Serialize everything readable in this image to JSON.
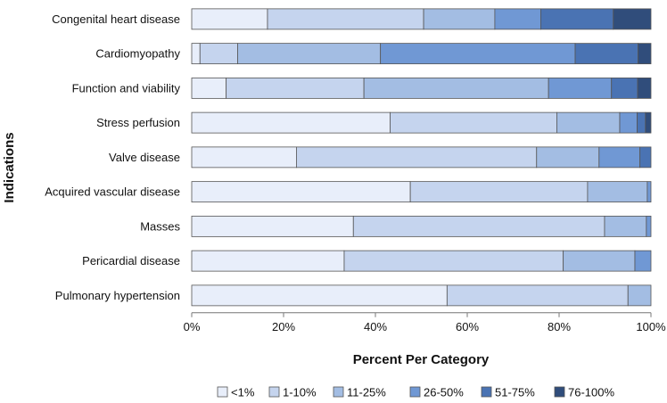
{
  "chart_data": {
    "type": "bar",
    "orientation": "horizontal",
    "stacked": true,
    "xlabel": "Percent Per Category",
    "ylabel": "Indications",
    "xlim": [
      0,
      100
    ],
    "xticks": [
      "0%",
      "20%",
      "40%",
      "60%",
      "80%",
      "100%"
    ],
    "categories": [
      "Congenital heart disease",
      "Cardiomyopathy",
      "Function and viability",
      "Stress perfusion",
      "Valve disease",
      "Acquired vascular disease",
      "Masses",
      "Pericardial disease",
      "Pulmonary hypertension"
    ],
    "series": [
      {
        "name": "<1%",
        "color": "#e8eefa",
        "values": [
          16.5,
          1.8,
          7.5,
          43.2,
          22.8,
          47.6,
          35.2,
          33.2,
          55.6
        ]
      },
      {
        "name": "1-10%",
        "color": "#c5d4ee",
        "values": [
          34.0,
          8.2,
          30.0,
          36.3,
          52.3,
          38.6,
          54.7,
          47.7,
          39.4
        ]
      },
      {
        "name": "11-25%",
        "color": "#a3bde3",
        "values": [
          15.5,
          31.1,
          40.2,
          13.7,
          13.6,
          13.0,
          9.1,
          15.6,
          5.0
        ]
      },
      {
        "name": "26-50%",
        "color": "#7098d4",
        "values": [
          10.0,
          42.4,
          13.7,
          3.8,
          8.9,
          0.8,
          1.0,
          3.5,
          0.0
        ]
      },
      {
        "name": "51-75%",
        "color": "#4a73b3",
        "values": [
          15.8,
          13.7,
          5.7,
          1.8,
          2.4,
          0.0,
          0.0,
          0.0,
          0.0
        ]
      },
      {
        "name": "76-100%",
        "color": "#304d7b",
        "values": [
          8.2,
          2.8,
          2.9,
          1.2,
          0.0,
          0.0,
          0.0,
          0.0,
          0.0
        ]
      }
    ],
    "legend_position": "bottom",
    "bar_stroke_color": "#555555"
  }
}
